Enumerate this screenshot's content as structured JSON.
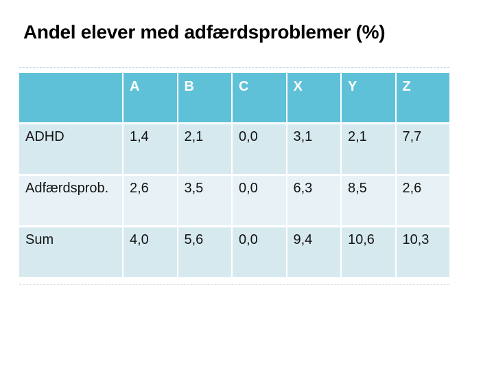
{
  "title": "Andel elever med adfærdsproblemer (%)",
  "table": {
    "headers": [
      "",
      "A",
      "B",
      "C",
      "X",
      "Y",
      "Z"
    ],
    "rows": [
      {
        "label": "ADHD",
        "values": [
          "1,4",
          "2,1",
          "0,0",
          "3,1",
          "2,1",
          "7,7"
        ]
      },
      {
        "label": "Adfærdsprob.",
        "values": [
          "2,6",
          "3,5",
          "0,0",
          "6,3",
          "8,5",
          "2,6"
        ]
      },
      {
        "label": "Sum",
        "values": [
          "4,0",
          "5,6",
          "0,0",
          "9,4",
          "10,6",
          "10,3"
        ]
      }
    ]
  },
  "colors": {
    "header_bg": "#5fc1d7",
    "header_text": "#ffffff",
    "row_primary_bg": "#d6e9ef",
    "row_alternate_bg": "#e8f2f6",
    "title_text": "#000000",
    "cell_text": "#141414"
  },
  "chart_data": {
    "type": "table",
    "title": "Andel elever med adfærdsproblemer (%)",
    "columns": [
      "A",
      "B",
      "C",
      "X",
      "Y",
      "Z"
    ],
    "row_labels": [
      "ADHD",
      "Adfærdsprob.",
      "Sum"
    ],
    "values": [
      [
        1.4,
        2.1,
        0.0,
        3.1,
        2.1,
        7.7
      ],
      [
        2.6,
        3.5,
        0.0,
        6.3,
        8.5,
        2.6
      ],
      [
        4.0,
        5.6,
        0.0,
        9.4,
        10.6,
        10.3
      ]
    ],
    "unit": "%"
  }
}
